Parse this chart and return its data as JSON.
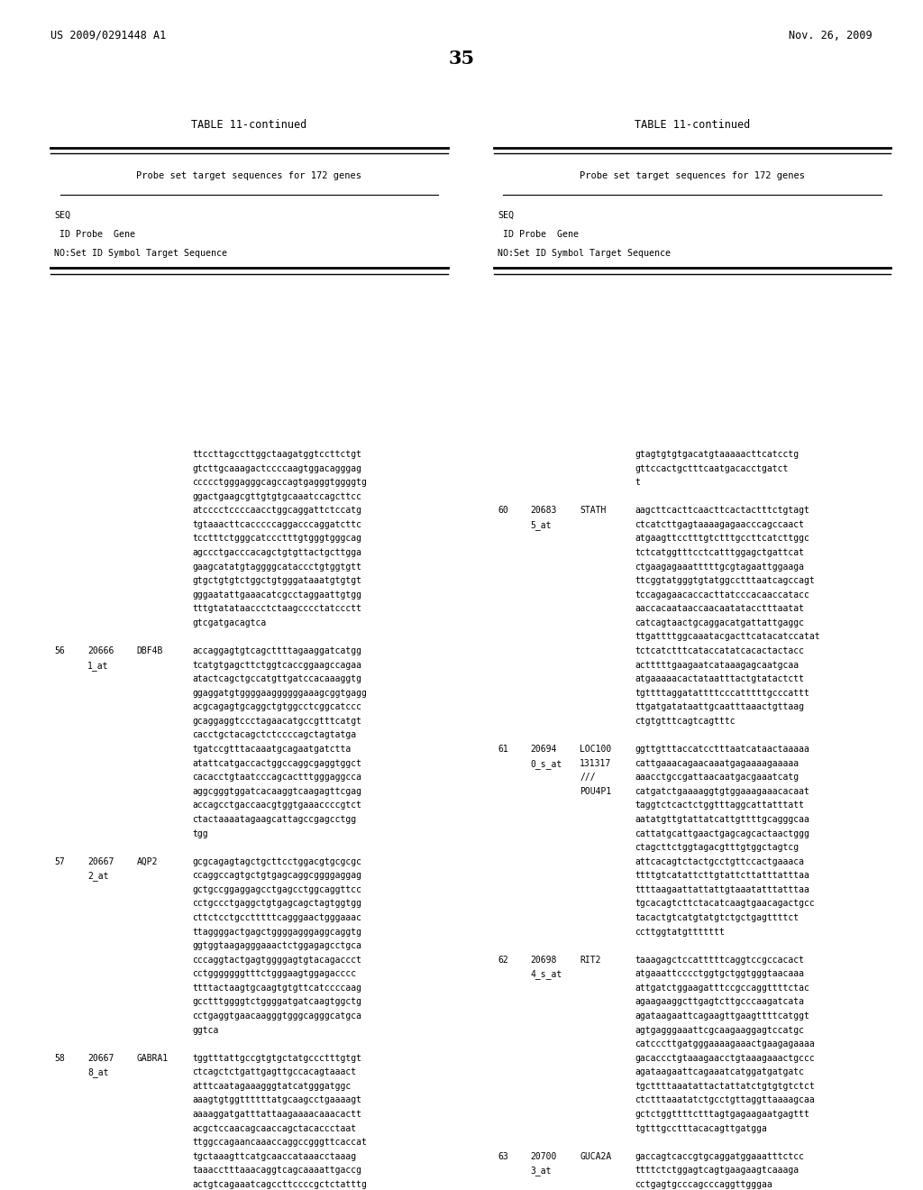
{
  "page_header_left": "US 2009/0291448 A1",
  "page_header_right": "Nov. 26, 2009",
  "page_number": "35",
  "table_title": "TABLE 11-continued",
  "table_subtitle": "Probe set target sequences for 172 genes",
  "background_color": "#ffffff",
  "text_color": "#000000"
}
